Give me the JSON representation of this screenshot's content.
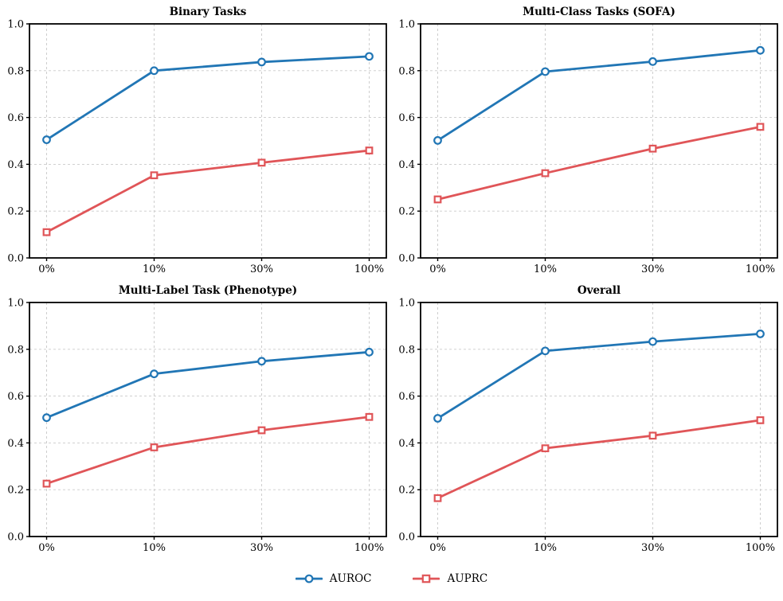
{
  "figure": {
    "background": "#ffffff",
    "text_color": "#000000",
    "grid_color": "#c9c9c9",
    "spine_color": "#000000"
  },
  "legend": {
    "position": "bottom-center",
    "items": [
      {
        "label": "AUROC",
        "marker": "circle",
        "color": "#2176b5"
      },
      {
        "label": "AUPRC",
        "marker": "square",
        "color": "#e05558"
      }
    ]
  },
  "chart_data": [
    {
      "type": "line",
      "title": "Binary Tasks",
      "x": [
        "0%",
        "10%",
        "30%",
        "100%"
      ],
      "xlabel": "",
      "ylabel": "",
      "ylim": [
        0.0,
        1.0
      ],
      "yticks": [
        0.0,
        0.2,
        0.4,
        0.6,
        0.8,
        1.0
      ],
      "grid": true,
      "series": [
        {
          "name": "AUROC",
          "marker": "circle",
          "color": "#2176b5",
          "values": [
            0.505,
            0.8,
            0.837,
            0.861
          ]
        },
        {
          "name": "AUPRC",
          "marker": "square",
          "color": "#e05558",
          "values": [
            0.11,
            0.353,
            0.407,
            0.459
          ]
        }
      ]
    },
    {
      "type": "line",
      "title": "Multi-Class Tasks (SOFA)",
      "x": [
        "0%",
        "10%",
        "30%",
        "100%"
      ],
      "xlabel": "",
      "ylabel": "",
      "ylim": [
        0.0,
        1.0
      ],
      "yticks": [
        0.0,
        0.2,
        0.4,
        0.6,
        0.8,
        1.0
      ],
      "grid": true,
      "series": [
        {
          "name": "AUROC",
          "marker": "circle",
          "color": "#2176b5",
          "values": [
            0.502,
            0.796,
            0.839,
            0.887
          ]
        },
        {
          "name": "AUPRC",
          "marker": "square",
          "color": "#e05558",
          "values": [
            0.25,
            0.362,
            0.467,
            0.56
          ]
        }
      ]
    },
    {
      "type": "line",
      "title": "Multi-Label Task (Phenotype)",
      "x": [
        "0%",
        "10%",
        "30%",
        "100%"
      ],
      "xlabel": "",
      "ylabel": "",
      "ylim": [
        0.0,
        1.0
      ],
      "yticks": [
        0.0,
        0.2,
        0.4,
        0.6,
        0.8,
        1.0
      ],
      "grid": true,
      "series": [
        {
          "name": "AUROC",
          "marker": "circle",
          "color": "#2176b5",
          "values": [
            0.508,
            0.695,
            0.749,
            0.788
          ]
        },
        {
          "name": "AUPRC",
          "marker": "square",
          "color": "#e05558",
          "values": [
            0.226,
            0.381,
            0.454,
            0.511
          ]
        }
      ]
    },
    {
      "type": "line",
      "title": "Overall",
      "x": [
        "0%",
        "10%",
        "30%",
        "100%"
      ],
      "xlabel": "",
      "ylabel": "",
      "ylim": [
        0.0,
        1.0
      ],
      "yticks": [
        0.0,
        0.2,
        0.4,
        0.6,
        0.8,
        1.0
      ],
      "grid": true,
      "series": [
        {
          "name": "AUROC",
          "marker": "circle",
          "color": "#2176b5",
          "values": [
            0.505,
            0.793,
            0.833,
            0.866
          ]
        },
        {
          "name": "AUPRC",
          "marker": "square",
          "color": "#e05558",
          "values": [
            0.164,
            0.377,
            0.431,
            0.497
          ]
        }
      ]
    }
  ]
}
